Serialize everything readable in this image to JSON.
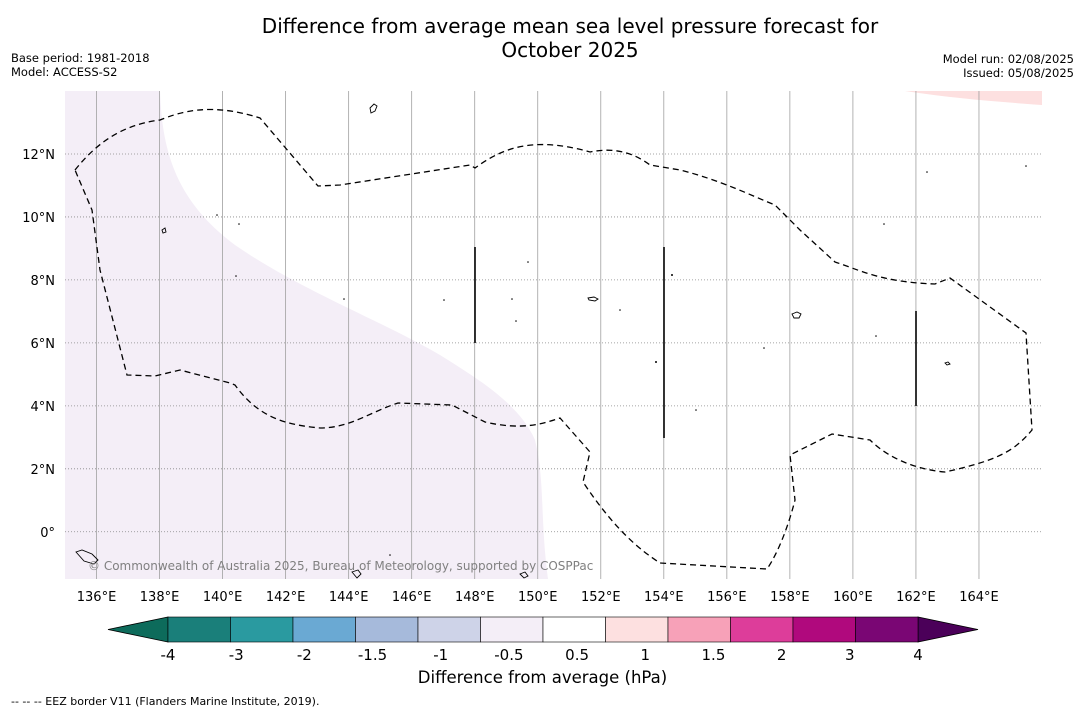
{
  "title": {
    "line1": "Difference from average mean sea level pressure forecast for",
    "line2": "October 2025"
  },
  "meta_left": {
    "base_period": "Base period: 1981-2018",
    "model": "Model: ACCESS-S2"
  },
  "meta_right": {
    "model_run": "Model run: 02/08/2025",
    "issued": "Issued: 05/08/2025"
  },
  "map": {
    "lon_labels": [
      "136°E",
      "138°E",
      "140°E",
      "142°E",
      "144°E",
      "146°E",
      "148°E",
      "150°E",
      "152°E",
      "154°E",
      "156°E",
      "158°E",
      "160°E",
      "162°E",
      "164°E"
    ],
    "lat_labels": [
      "12°N",
      "10°N",
      "8°N",
      "6°N",
      "4°N",
      "2°N",
      "0°"
    ],
    "lon_range": [
      135.0,
      166.0
    ],
    "lat_range": [
      -1.5,
      14.0
    ],
    "grid": true,
    "copyright": "© Commonwealth of Australia 2025, Bureau of Meteorology, supported by COSPPac"
  },
  "colorbar": {
    "title": "Difference from average (hPa)",
    "tick_labels": [
      "-4",
      "-3",
      "-2",
      "-1.5",
      "-1",
      "-0.5",
      "0.5",
      "1",
      "1.5",
      "2",
      "3",
      "4"
    ],
    "colors": [
      "#1a7f7a",
      "#2a9aa0",
      "#6aa9d3",
      "#a6badb",
      "#ced3e8",
      "#f4eef7",
      "#ffffff",
      "#fde0e0",
      "#f7a1b8",
      "#dd3d9a",
      "#b0097d",
      "#7a0674"
    ],
    "extend_low_color": "#0d6b5b",
    "extend_high_color": "#4b0059"
  },
  "footnote": "--  --  -- EEZ border V11 (Flanders Marine Institute, 2019)."
}
